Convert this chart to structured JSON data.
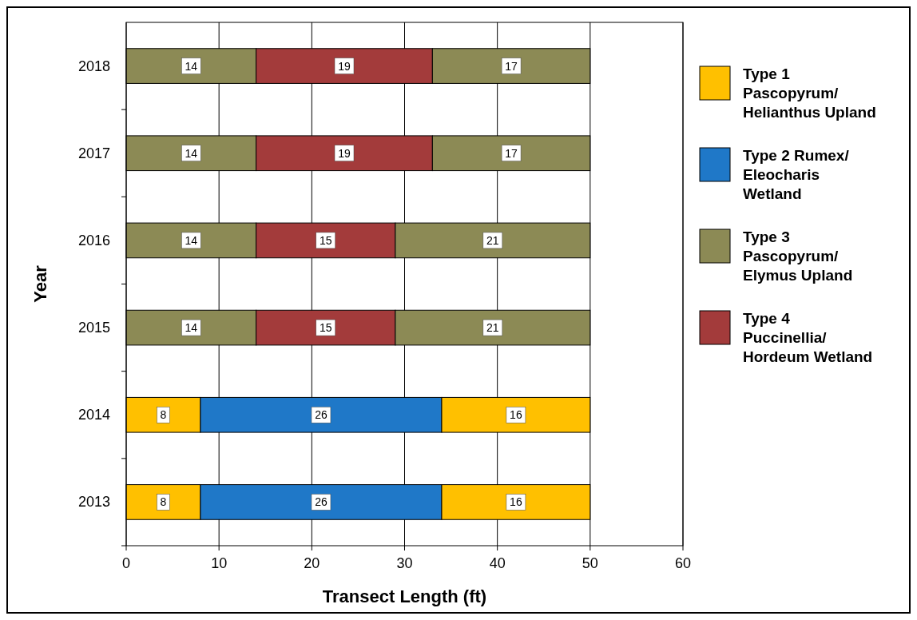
{
  "chart_data": {
    "type": "bar",
    "orientation": "horizontal",
    "stacked": true,
    "xlabel": "Transect Length (ft)",
    "ylabel": "Year",
    "categories": [
      "2018",
      "2017",
      "2016",
      "2015",
      "2014",
      "2013"
    ],
    "series": [
      {
        "name": "Type 1 Pascopyrum/ Helianthus Upland",
        "color": "#ffc000",
        "values": [
          null,
          null,
          null,
          null,
          8,
          8
        ]
      },
      {
        "name": "Type 2 Rumex/ Eleocharis Wetland",
        "color": "#1f78c8",
        "values": [
          null,
          null,
          null,
          null,
          26,
          26
        ]
      },
      {
        "name": "Type 3 Pascopyrum/ Elymus Upland",
        "color": "#8c8a55",
        "values": [
          14,
          14,
          14,
          14,
          null,
          null
        ]
      },
      {
        "name": "Type 4 Puccinellia/ Hordeum Wetland",
        "color": "#a33b3b",
        "values": [
          19,
          19,
          15,
          15,
          null,
          null
        ]
      },
      {
        "color": "#ffc000",
        "values": [
          null,
          null,
          null,
          null,
          16,
          16
        ]
      },
      {
        "color": "#8c8a55",
        "values": [
          17,
          17,
          21,
          21,
          null,
          null
        ]
      }
    ],
    "xlim": [
      0,
      60
    ],
    "xticks": [
      0,
      10,
      20,
      30,
      40,
      50,
      60
    ],
    "grid": "x",
    "legend": "right",
    "data_labels": true
  }
}
